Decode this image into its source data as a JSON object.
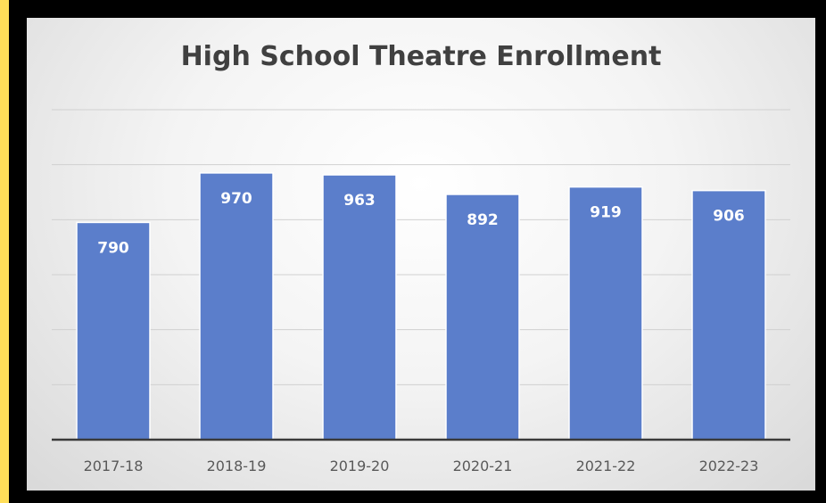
{
  "colors": {
    "border": "#ffde59",
    "bar": "#5b7ecb",
    "gridline": "#d0d0d0",
    "axis": "#3a3a3a",
    "title": "#404040"
  },
  "chart_data": {
    "type": "bar",
    "title": "High School Theatre Enrollment",
    "xlabel": "",
    "ylabel": "",
    "categories": [
      "2017-18",
      "2018-19",
      "2019-20",
      "2020-21",
      "2021-22",
      "2022-23"
    ],
    "values": [
      790,
      970,
      963,
      892,
      919,
      906
    ],
    "ylim": [
      0,
      1200
    ],
    "grid": true,
    "legend": "none",
    "data_labels": true
  }
}
